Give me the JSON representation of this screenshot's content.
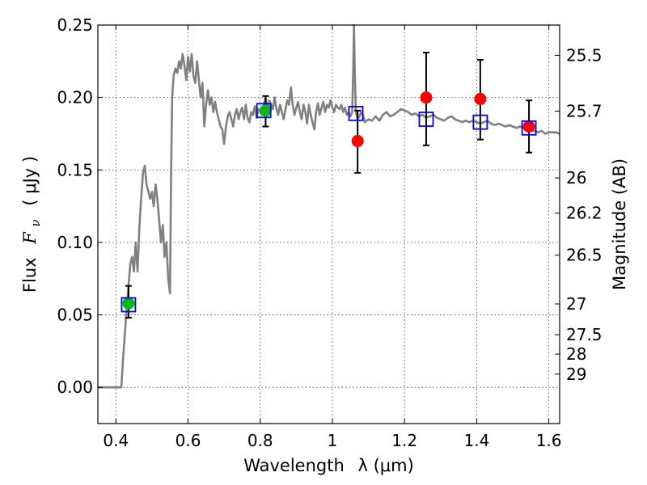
{
  "chart_data": {
    "type": "scatter",
    "title": "",
    "xlabel": "Wavelength",
    "xlabel_math_html": "λ (<tspan class=\"math\">μ</tspan>m)",
    "xlabel_unit_text": "λ (μm)",
    "ylabel": "Flux",
    "ylabel_symbol": "F",
    "ylabel_symbol_sub": "ν",
    "ylabel_unit_text": "( μJy )",
    "ylabel_right": "Magnitude (AB)",
    "xlim": [
      0.35,
      1.63
    ],
    "ylim": [
      -0.025,
      0.25
    ],
    "xticks": [
      0.4,
      0.6,
      0.8,
      1.0,
      1.2,
      1.4,
      1.6
    ],
    "xtick_labels": [
      "0.4",
      "0.6",
      "0.8",
      "1",
      "1.2",
      "1.4",
      "1.6"
    ],
    "yticks": [
      0.0,
      0.05,
      0.1,
      0.15,
      0.2,
      0.25
    ],
    "ytick_labels": [
      "0.00",
      "0.05",
      "0.10",
      "0.15",
      "0.20",
      "0.25"
    ],
    "right_ticks": [
      {
        "mag": 25.5,
        "label": "25.5"
      },
      {
        "mag": 25.7,
        "label": "25.7"
      },
      {
        "mag": 26.0,
        "label": "26"
      },
      {
        "mag": 26.2,
        "label": "26.2"
      },
      {
        "mag": 26.5,
        "label": "26.5"
      },
      {
        "mag": 27.0,
        "label": "27"
      },
      {
        "mag": 27.5,
        "label": "27.5"
      },
      {
        "mag": 28.0,
        "label": "28"
      },
      {
        "mag": 29.0,
        "label": "29"
      }
    ],
    "ab_zero_point_uJy": 3631000000,
    "grid": true,
    "series": [
      {
        "name": "model spectrum",
        "style": "line",
        "color": "#808080",
        "points": [
          [
            0.35,
            0.0
          ],
          [
            0.41,
            0.0
          ],
          [
            0.415,
            0.0
          ],
          [
            0.42,
            0.02
          ],
          [
            0.43,
            0.055
          ],
          [
            0.44,
            0.085
          ],
          [
            0.445,
            0.09
          ],
          [
            0.45,
            0.08
          ],
          [
            0.455,
            0.1
          ],
          [
            0.46,
            0.08
          ],
          [
            0.465,
            0.11
          ],
          [
            0.47,
            0.13
          ],
          [
            0.475,
            0.148
          ],
          [
            0.48,
            0.153
          ],
          [
            0.485,
            0.14
          ],
          [
            0.49,
            0.135
          ],
          [
            0.495,
            0.13
          ],
          [
            0.5,
            0.135
          ],
          [
            0.505,
            0.125
          ],
          [
            0.51,
            0.14
          ],
          [
            0.515,
            0.13
          ],
          [
            0.52,
            0.115
          ],
          [
            0.525,
            0.1
          ],
          [
            0.53,
            0.112
          ],
          [
            0.535,
            0.09
          ],
          [
            0.54,
            0.1
          ],
          [
            0.545,
            0.075
          ],
          [
            0.55,
            0.065
          ],
          [
            0.553,
            0.15
          ],
          [
            0.556,
            0.2
          ],
          [
            0.56,
            0.215
          ],
          [
            0.565,
            0.22
          ],
          [
            0.57,
            0.217
          ],
          [
            0.575,
            0.225
          ],
          [
            0.58,
            0.22
          ],
          [
            0.585,
            0.23
          ],
          [
            0.59,
            0.222
          ],
          [
            0.595,
            0.212
          ],
          [
            0.6,
            0.228
          ],
          [
            0.605,
            0.218
          ],
          [
            0.61,
            0.23
          ],
          [
            0.615,
            0.215
          ],
          [
            0.62,
            0.21
          ],
          [
            0.625,
            0.225
          ],
          [
            0.63,
            0.212
          ],
          [
            0.635,
            0.2
          ],
          [
            0.64,
            0.21
          ],
          [
            0.645,
            0.18
          ],
          [
            0.65,
            0.195
          ],
          [
            0.655,
            0.205
          ],
          [
            0.66,
            0.195
          ],
          [
            0.665,
            0.2
          ],
          [
            0.67,
            0.19
          ],
          [
            0.675,
            0.197
          ],
          [
            0.68,
            0.19
          ],
          [
            0.685,
            0.185
          ],
          [
            0.69,
            0.18
          ],
          [
            0.695,
            0.178
          ],
          [
            0.7,
            0.168
          ],
          [
            0.705,
            0.18
          ],
          [
            0.71,
            0.187
          ],
          [
            0.715,
            0.19
          ],
          [
            0.72,
            0.185
          ],
          [
            0.725,
            0.18
          ],
          [
            0.73,
            0.188
          ],
          [
            0.735,
            0.192
          ],
          [
            0.74,
            0.185
          ],
          [
            0.745,
            0.19
          ],
          [
            0.75,
            0.193
          ],
          [
            0.755,
            0.185
          ],
          [
            0.76,
            0.195
          ],
          [
            0.765,
            0.186
          ],
          [
            0.77,
            0.183
          ],
          [
            0.775,
            0.19
          ],
          [
            0.78,
            0.188
          ],
          [
            0.785,
            0.194
          ],
          [
            0.79,
            0.186
          ],
          [
            0.795,
            0.192
          ],
          [
            0.8,
            0.19
          ],
          [
            0.805,
            0.188
          ],
          [
            0.81,
            0.195
          ],
          [
            0.815,
            0.2
          ],
          [
            0.82,
            0.19
          ],
          [
            0.825,
            0.198
          ],
          [
            0.83,
            0.195
          ],
          [
            0.835,
            0.192
          ],
          [
            0.84,
            0.2
          ],
          [
            0.845,
            0.192
          ],
          [
            0.85,
            0.188
          ],
          [
            0.855,
            0.195
          ],
          [
            0.86,
            0.19
          ],
          [
            0.865,
            0.185
          ],
          [
            0.87,
            0.192
          ],
          [
            0.875,
            0.198
          ],
          [
            0.88,
            0.195
          ],
          [
            0.885,
            0.207
          ],
          [
            0.89,
            0.195
          ],
          [
            0.895,
            0.188
          ],
          [
            0.9,
            0.193
          ],
          [
            0.905,
            0.197
          ],
          [
            0.91,
            0.19
          ],
          [
            0.915,
            0.185
          ],
          [
            0.92,
            0.195
          ],
          [
            0.925,
            0.19
          ],
          [
            0.93,
            0.182
          ],
          [
            0.935,
            0.195
          ],
          [
            0.94,
            0.188
          ],
          [
            0.945,
            0.183
          ],
          [
            0.95,
            0.178
          ],
          [
            0.955,
            0.19
          ],
          [
            0.96,
            0.196
          ],
          [
            0.965,
            0.188
          ],
          [
            0.97,
            0.193
          ],
          [
            0.975,
            0.197
          ],
          [
            0.98,
            0.19
          ],
          [
            0.985,
            0.195
          ],
          [
            0.99,
            0.193
          ],
          [
            0.995,
            0.198
          ],
          [
            1.0,
            0.193
          ],
          [
            1.005,
            0.19
          ],
          [
            1.01,
            0.195
          ],
          [
            1.015,
            0.193
          ],
          [
            1.02,
            0.192
          ],
          [
            1.025,
            0.195
          ],
          [
            1.03,
            0.19
          ],
          [
            1.035,
            0.193
          ],
          [
            1.04,
            0.188
          ],
          [
            1.045,
            0.19
          ],
          [
            1.05,
            0.187
          ],
          [
            1.055,
            0.19
          ],
          [
            1.058,
            0.22
          ],
          [
            1.06,
            0.25
          ],
          [
            1.062,
            0.22
          ],
          [
            1.065,
            0.19
          ],
          [
            1.07,
            0.185
          ],
          [
            1.075,
            0.187
          ],
          [
            1.08,
            0.19
          ],
          [
            1.085,
            0.188
          ],
          [
            1.09,
            0.183
          ],
          [
            1.1,
            0.185
          ],
          [
            1.11,
            0.184
          ],
          [
            1.12,
            0.187
          ],
          [
            1.13,
            0.184
          ],
          [
            1.14,
            0.188
          ],
          [
            1.15,
            0.19
          ],
          [
            1.16,
            0.187
          ],
          [
            1.17,
            0.188
          ],
          [
            1.18,
            0.19
          ],
          [
            1.19,
            0.192
          ],
          [
            1.2,
            0.191
          ],
          [
            1.21,
            0.19
          ],
          [
            1.22,
            0.188
          ],
          [
            1.23,
            0.189
          ],
          [
            1.24,
            0.187
          ],
          [
            1.25,
            0.188
          ],
          [
            1.26,
            0.186
          ],
          [
            1.27,
            0.187
          ],
          [
            1.28,
            0.188
          ],
          [
            1.29,
            0.186
          ],
          [
            1.3,
            0.185
          ],
          [
            1.31,
            0.184
          ],
          [
            1.32,
            0.186
          ],
          [
            1.33,
            0.187
          ],
          [
            1.34,
            0.185
          ],
          [
            1.35,
            0.184
          ],
          [
            1.36,
            0.183
          ],
          [
            1.37,
            0.184
          ],
          [
            1.38,
            0.183
          ],
          [
            1.39,
            0.184
          ],
          [
            1.4,
            0.183
          ],
          [
            1.41,
            0.182
          ],
          [
            1.42,
            0.183
          ],
          [
            1.43,
            0.184
          ],
          [
            1.44,
            0.182
          ],
          [
            1.45,
            0.181
          ],
          [
            1.46,
            0.182
          ],
          [
            1.47,
            0.181
          ],
          [
            1.48,
            0.18
          ],
          [
            1.49,
            0.181
          ],
          [
            1.5,
            0.18
          ],
          [
            1.51,
            0.179
          ],
          [
            1.52,
            0.18
          ],
          [
            1.53,
            0.179
          ],
          [
            1.54,
            0.178
          ],
          [
            1.55,
            0.178
          ],
          [
            1.56,
            0.177
          ],
          [
            1.57,
            0.176
          ],
          [
            1.58,
            0.177
          ],
          [
            1.59,
            0.175
          ],
          [
            1.6,
            0.176
          ],
          [
            1.61,
            0.176
          ],
          [
            1.62,
            0.176
          ],
          [
            1.63,
            0.175
          ]
        ]
      },
      {
        "name": "green points",
        "style": "circle",
        "color": "#00bb00",
        "points": [
          {
            "x": 0.435,
            "y": 0.058
          },
          {
            "x": 0.815,
            "y": 0.191
          }
        ]
      },
      {
        "name": "red points",
        "style": "circle",
        "color": "#ff0000",
        "points": [
          {
            "x": 1.07,
            "y": 0.17
          },
          {
            "x": 1.26,
            "y": 0.2
          },
          {
            "x": 1.41,
            "y": 0.199
          },
          {
            "x": 1.545,
            "y": 0.18
          }
        ]
      },
      {
        "name": "blue squares",
        "style": "square",
        "color": "#0000ff",
        "points": [
          {
            "x": 0.435,
            "y": 0.057
          },
          {
            "x": 0.81,
            "y": 0.191
          },
          {
            "x": 1.065,
            "y": 0.189
          },
          {
            "x": 1.26,
            "y": 0.185
          },
          {
            "x": 1.41,
            "y": 0.183
          },
          {
            "x": 1.545,
            "y": 0.179
          }
        ]
      }
    ],
    "error_bars": [
      {
        "x": 0.435,
        "ylow": 0.048,
        "yhigh": 0.07
      },
      {
        "x": 0.815,
        "ylow": 0.18,
        "yhigh": 0.201
      },
      {
        "x": 1.07,
        "ylow": 0.148,
        "yhigh": 0.191
      },
      {
        "x": 1.26,
        "ylow": 0.167,
        "yhigh": 0.231
      },
      {
        "x": 1.41,
        "ylow": 0.171,
        "yhigh": 0.226
      },
      {
        "x": 1.545,
        "ylow": 0.162,
        "yhigh": 0.198
      }
    ]
  }
}
